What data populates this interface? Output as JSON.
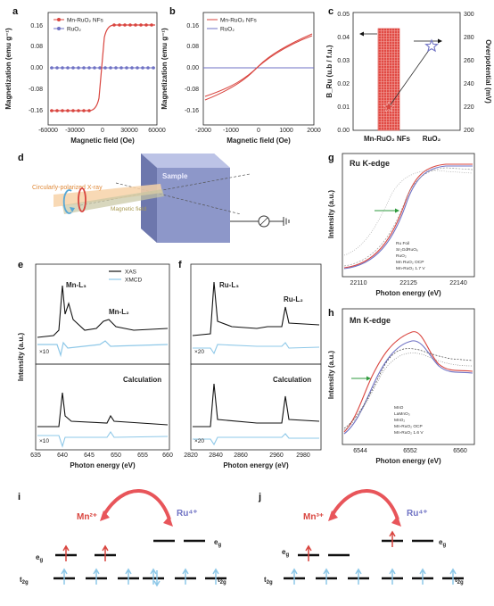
{
  "panels": {
    "a": {
      "letter": "a",
      "ylabel": "Magnetization (emu g⁻¹)",
      "xlabel": "Magnetic field (Oe)",
      "legend": [
        "Mn-RuO₂ NFs",
        "RuO₂"
      ],
      "yticks": [
        "0.16",
        "0.08",
        "0.00",
        "-0.08",
        "-0.16"
      ],
      "xticks": [
        "-60000",
        "-30000",
        "0",
        "30000",
        "60000"
      ]
    },
    "b": {
      "letter": "b",
      "ylabel": "Magnetization (emu g⁻¹)",
      "xlabel": "Magnetic field (Oe)",
      "legend": [
        "Mn-RuO₂ NFs",
        "RuO₂"
      ],
      "yticks": [
        "0.16",
        "0.08",
        "0.00",
        "-0.08",
        "-0.16"
      ],
      "xticks": [
        "-2000",
        "-1000",
        "0",
        "1000",
        "2000"
      ]
    },
    "c": {
      "letter": "c",
      "ylabel_left": "B_Ru (u.b / f.u.)",
      "ylabel_right": "Overpotential (mV)",
      "yticks_left": [
        "0.05",
        "0.04",
        "0.03",
        "0.02",
        "0.01",
        "0.00"
      ],
      "yticks_right": [
        "300",
        "280",
        "260",
        "240",
        "220",
        "200"
      ],
      "categories": [
        "Mn-RuO₂ NFs",
        "RuO₂"
      ]
    },
    "d": {
      "letter": "d",
      "sample": "Sample",
      "beam": "Circularly-polarized X-ray",
      "field": "Magnetic field"
    },
    "e": {
      "letter": "e",
      "ylabel": "Intensity (a.u.)",
      "xlabel": "Photon energy (eV)",
      "legend": [
        "XAS",
        "XMCD"
      ],
      "peak1": "Mn-L₃",
      "peak2": "Mn-L₂",
      "calc": "Calculation",
      "mult1": "×10",
      "mult2": "×10",
      "xticks": [
        "635",
        "640",
        "645",
        "650",
        "655",
        "660"
      ]
    },
    "f": {
      "letter": "f",
      "peak1": "Ru-L₃",
      "peak2": "Ru-L₂",
      "calc": "Calculation",
      "mult1": "×20",
      "mult2": "×20",
      "xlabel": "Photon energy (eV)",
      "xticks": [
        "2820",
        "2840",
        "2860",
        "2960",
        "2980"
      ]
    },
    "g": {
      "letter": "g",
      "title": "Ru K-edge",
      "ylabel": "Intensity (a.u.)",
      "xlabel": "Photon energy (eV)",
      "legend": [
        "Ru Foil",
        "Sr₂GdRuO₆",
        "RuO₂",
        "Mn RuO₂ OCP",
        "Mn-RuO₂ 1.7 V"
      ],
      "xticks": [
        "22110",
        "22125",
        "22140"
      ]
    },
    "h": {
      "letter": "h",
      "title": "Mn K-edge",
      "ylabel": "Intensity (a.u.)",
      "xlabel": "Photon energy (eV)",
      "legend": [
        "MnO",
        "LaMnO₃",
        "MnO₂",
        "Mn-RuO₂ OCP",
        "Mn-RuO₂ 1.6 V"
      ],
      "xticks": [
        "6544",
        "6552",
        "6560"
      ]
    },
    "i": {
      "letter": "i",
      "ion_left": "Mn²⁺",
      "ion_right": "Ru⁴⁺",
      "eg_left": "e",
      "eg_right": "e",
      "t2g_left": "t",
      "t2g_right": "t",
      "sub_g": "g",
      "sub_2g": "2g"
    },
    "j": {
      "letter": "j",
      "ion_left": "Mn³⁺",
      "ion_right": "Ru⁴⁺",
      "eg_left": "e",
      "eg_right": "e",
      "t2g_left": "t",
      "t2g_right": "t",
      "sub_g": "g",
      "sub_2g": "2g"
    }
  },
  "colors": {
    "mn_red": "#d9453f",
    "ru_blue": "#6f72c4",
    "light_blue": "#8ec8e8",
    "arrow_pink": "#e8555a",
    "dark": "#111111"
  }
}
